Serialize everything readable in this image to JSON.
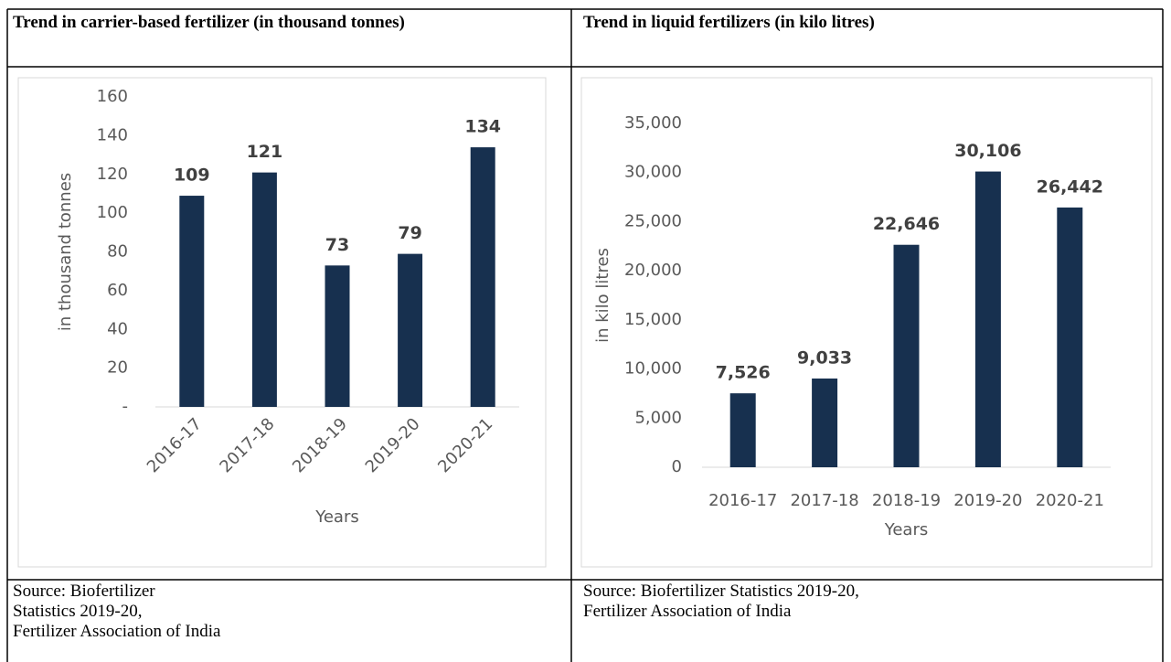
{
  "table": {
    "headers": [
      "Trend in carrier-based fertilizer (in thousand tonnes)",
      "Trend in liquid fertilizers (in kilo litres)"
    ],
    "sources": [
      [
        "Source: Biofertilizer",
        "Statistics 2019-20,",
        "Fertilizer Association of India"
      ],
      [
        "Source: Biofertilizer Statistics 2019-20,",
        "Fertilizer Association of India"
      ]
    ]
  },
  "chart_data": [
    {
      "type": "bar",
      "x_label": "Years",
      "y_label": "in thousand tonnes",
      "categories": [
        "2016-17",
        "2017-18",
        "2018-19",
        "2019-20",
        "2020-21"
      ],
      "values": [
        109,
        121,
        73,
        79,
        134
      ],
      "color": "#17304f",
      "ylim": [
        0,
        160
      ],
      "yticks": [
        {
          "value": 0,
          "label": "-"
        },
        20,
        40,
        60,
        80,
        100,
        120,
        140,
        160
      ],
      "grid": false
    },
    {
      "type": "bar",
      "x_label": "Years",
      "y_label": "in kilo litres",
      "categories": [
        "2016-17",
        "2017-18",
        "2018-19",
        "2019-20",
        "2020-21"
      ],
      "values": [
        7526,
        9033,
        22646,
        30106,
        26442
      ],
      "value_labels": [
        "7,526",
        "9,033",
        "22,646",
        "30,106",
        "26,442"
      ],
      "color": "#17304f",
      "ylim": [
        0,
        35000
      ],
      "yticks": [
        0,
        {
          "value": 5000,
          "label": "5,000"
        },
        {
          "value": 10000,
          "label": "10,000"
        },
        {
          "value": 15000,
          "label": "15,000"
        },
        {
          "value": 20000,
          "label": "20,000"
        },
        {
          "value": 25000,
          "label": "25,000"
        },
        {
          "value": 30000,
          "label": "30,000"
        },
        {
          "value": 35000,
          "label": "35,000"
        }
      ],
      "grid": false
    }
  ]
}
